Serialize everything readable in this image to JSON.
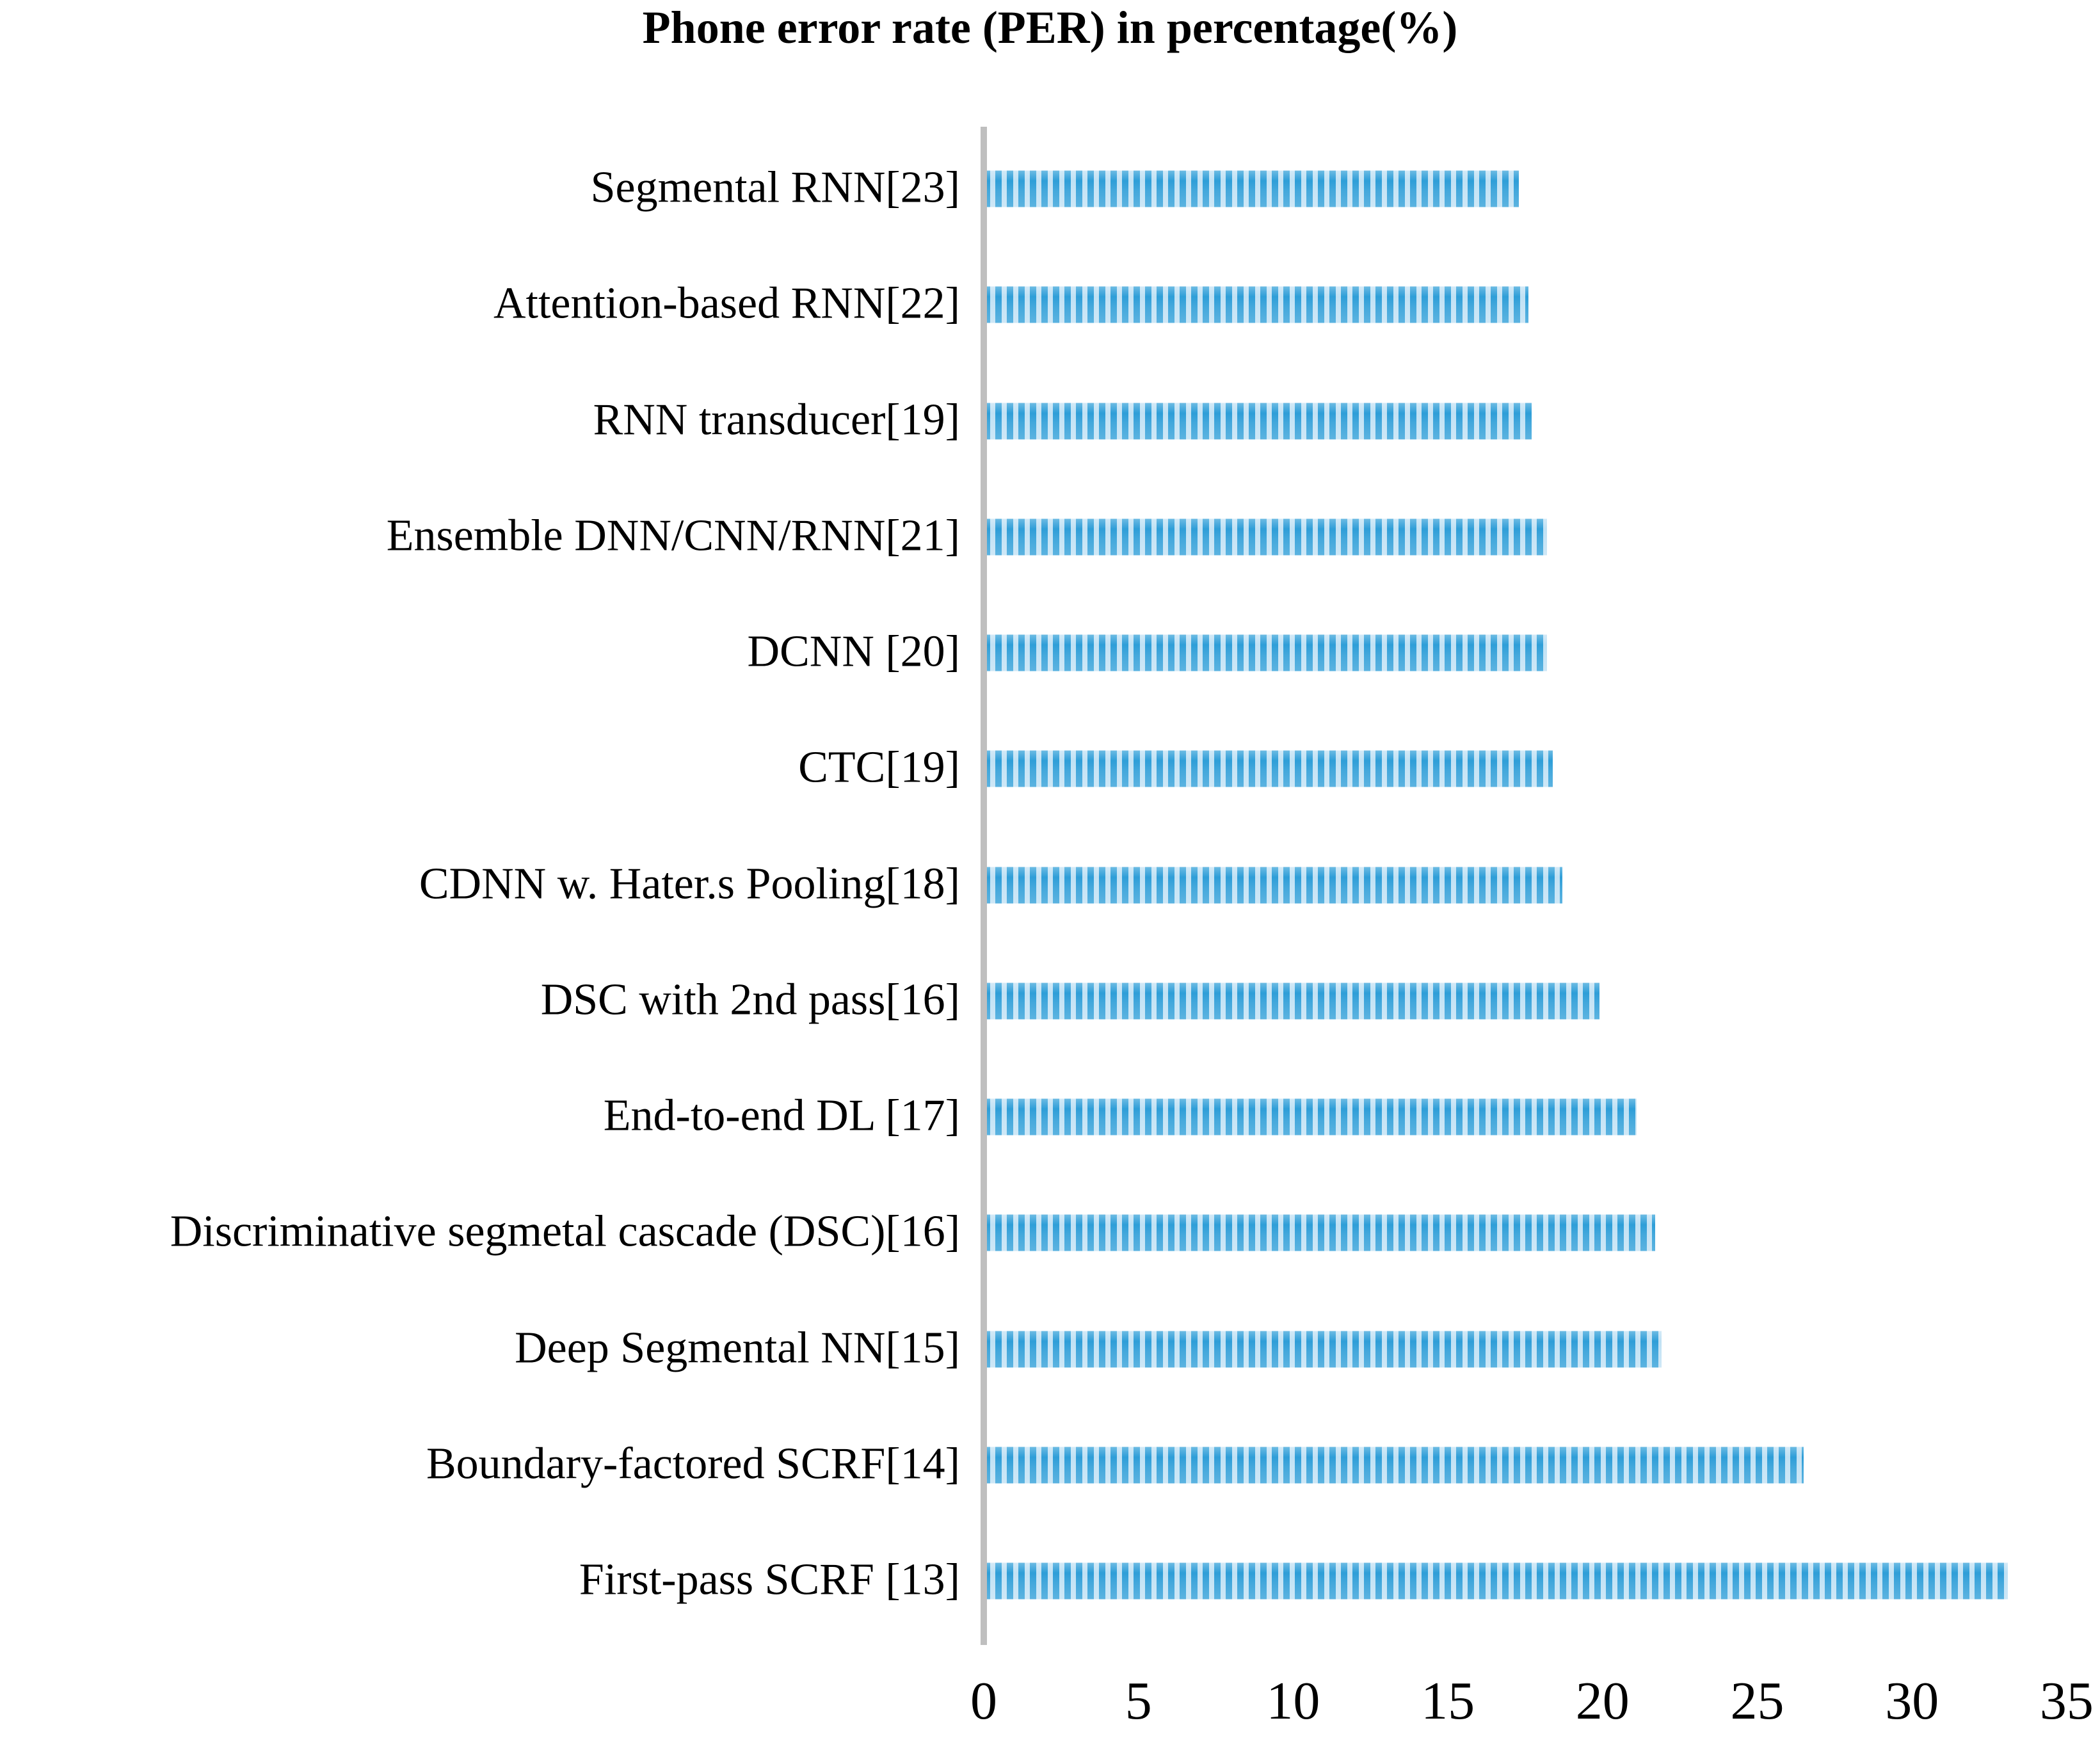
{
  "title": "Phone error rate (PER) in percentage(%)",
  "chart_data": {
    "type": "bar",
    "orientation": "horizontal",
    "title": "Phone error rate (PER) in percentage(%)",
    "categories": [
      "Segmental RNN[23]",
      "Attention-based RNN[22]",
      "RNN transducer[19]",
      "Ensemble DNN/CNN/RNN[21]",
      "DCNN [20]",
      "CTC[19]",
      "CDNN w. Hater.s Pooling[18]",
      "DSC with 2nd pass[16]",
      "End-to-end DL [17]",
      "Discriminative segmetal cascade (DSC)[16]",
      "Deep Segmental NN[15]",
      "Boundary-factored SCRF[14]",
      "First-pass SCRF [13]"
    ],
    "values": [
      17.3,
      17.6,
      17.7,
      18.2,
      18.2,
      18.4,
      18.7,
      19.9,
      21.1,
      21.7,
      21.9,
      26.5,
      33.1
    ],
    "xlabel": "",
    "ylabel": "",
    "x_ticks": [
      0,
      5,
      10,
      15,
      20,
      25,
      30,
      35
    ],
    "xlim": [
      0,
      35
    ],
    "grid": false,
    "legend": "none",
    "bar_stripe_dark": "#2E9ED8",
    "bar_stripe_light": "#C0E1F4",
    "axis_line_color": "#BFBFBF",
    "text_color": "#000000"
  }
}
